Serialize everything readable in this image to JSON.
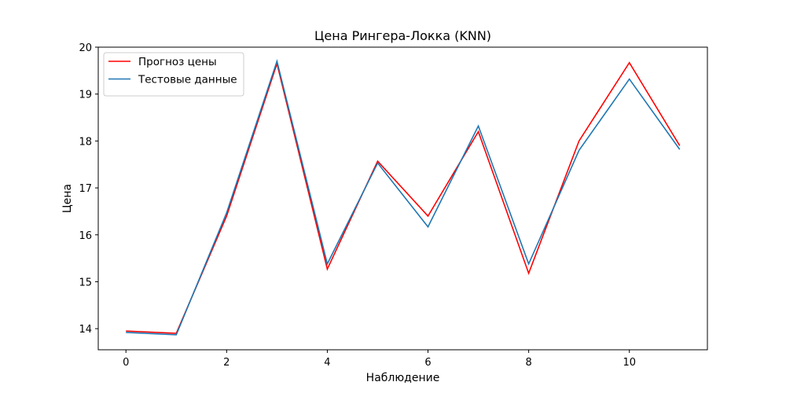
{
  "chart_data": {
    "type": "line",
    "title": "Цена Рингера-Локка  (KNN)",
    "xlabel": "Наблюдение",
    "ylabel": "Цена",
    "x": [
      0,
      1,
      2,
      3,
      4,
      5,
      6,
      7,
      8,
      9,
      10,
      11
    ],
    "xlim": [
      -0.55,
      11.55
    ],
    "ylim": [
      13.55,
      20.0
    ],
    "xticks": [
      0,
      2,
      4,
      6,
      8,
      10
    ],
    "yticks": [
      14,
      15,
      16,
      17,
      18,
      19,
      20
    ],
    "grid": false,
    "legend_position": "top-left",
    "series": [
      {
        "name": "Прогноз цены",
        "color": "#ff0000",
        "values": [
          13.95,
          13.9,
          16.4,
          19.65,
          15.27,
          17.57,
          16.4,
          18.2,
          15.18,
          18.0,
          19.67,
          17.9
        ]
      },
      {
        "name": "Тестовые данные",
        "color": "#1f77b4",
        "values": [
          13.92,
          13.87,
          16.47,
          19.7,
          15.38,
          17.53,
          16.17,
          18.32,
          15.38,
          17.8,
          19.32,
          17.82
        ]
      }
    ]
  }
}
